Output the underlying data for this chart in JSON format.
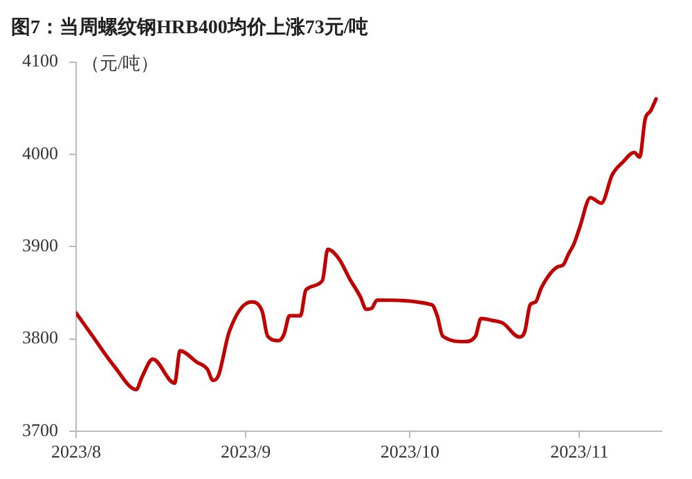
{
  "chart_data": {
    "type": "line",
    "title": "图7：当周螺纹钢HRB400均价上涨73元/吨",
    "ylabel": "（元/吨）",
    "x": [
      "2023-08-01",
      "2023-08-04",
      "2023-08-08",
      "2023-08-12",
      "2023-08-13",
      "2023-08-15",
      "2023-08-19",
      "2023-08-20",
      "2023-08-23",
      "2023-08-25",
      "2023-08-26",
      "2023-08-27",
      "2023-08-29",
      "2023-09-02",
      "2023-09-04",
      "2023-09-05",
      "2023-09-07",
      "2023-09-08",
      "2023-09-09",
      "2023-09-11",
      "2023-09-12",
      "2023-09-15",
      "2023-09-16",
      "2023-09-18",
      "2023-09-20",
      "2023-09-22",
      "2023-09-23",
      "2023-09-24",
      "2023-09-25",
      "2023-10-05",
      "2023-10-06",
      "2023-10-07",
      "2023-10-11",
      "2023-10-13",
      "2023-10-14",
      "2023-10-16",
      "2023-10-18",
      "2023-10-21",
      "2023-10-22",
      "2023-10-23",
      "2023-10-24",
      "2023-10-25",
      "2023-10-28",
      "2023-10-29",
      "2023-10-30",
      "2023-10-31",
      "2023-11-01",
      "2023-11-03",
      "2023-11-05",
      "2023-11-07",
      "2023-11-09",
      "2023-11-11",
      "2023-11-12",
      "2023-11-13",
      "2023-11-14",
      "2023-11-15"
    ],
    "series": [
      {
        "color": "#c00000",
        "values": [
          3828,
          3803,
          3770,
          3745,
          3758,
          3778,
          3752,
          3787,
          3775,
          3767,
          3755,
          3760,
          3808,
          3840,
          3830,
          3803,
          3798,
          3805,
          3825,
          3825,
          3853,
          3863,
          3897,
          3887,
          3865,
          3845,
          3832,
          3833,
          3842,
          3837,
          3825,
          3803,
          3797,
          3803,
          3822,
          3820,
          3817,
          3802,
          3808,
          3837,
          3840,
          3855,
          3878,
          3880,
          3892,
          3903,
          3920,
          3953,
          3947,
          3978,
          3992,
          4002,
          3997,
          4038,
          4047,
          4060
        ]
      }
    ],
    "xlim": [
      "2023-08-01",
      "2023-11-16"
    ],
    "xticks": [
      {
        "value": "2023-08-01",
        "label": "2023/8"
      },
      {
        "value": "2023-09-01",
        "label": "2023/9"
      },
      {
        "value": "2023-10-01",
        "label": "2023/10"
      },
      {
        "value": "2023-11-01",
        "label": "2023/11"
      }
    ],
    "ylim": [
      3700,
      4100
    ],
    "yticks": [
      3700,
      3800,
      3900,
      4000,
      4100
    ],
    "grid": false,
    "legend": false,
    "marker": "none",
    "line_style": "solid"
  }
}
